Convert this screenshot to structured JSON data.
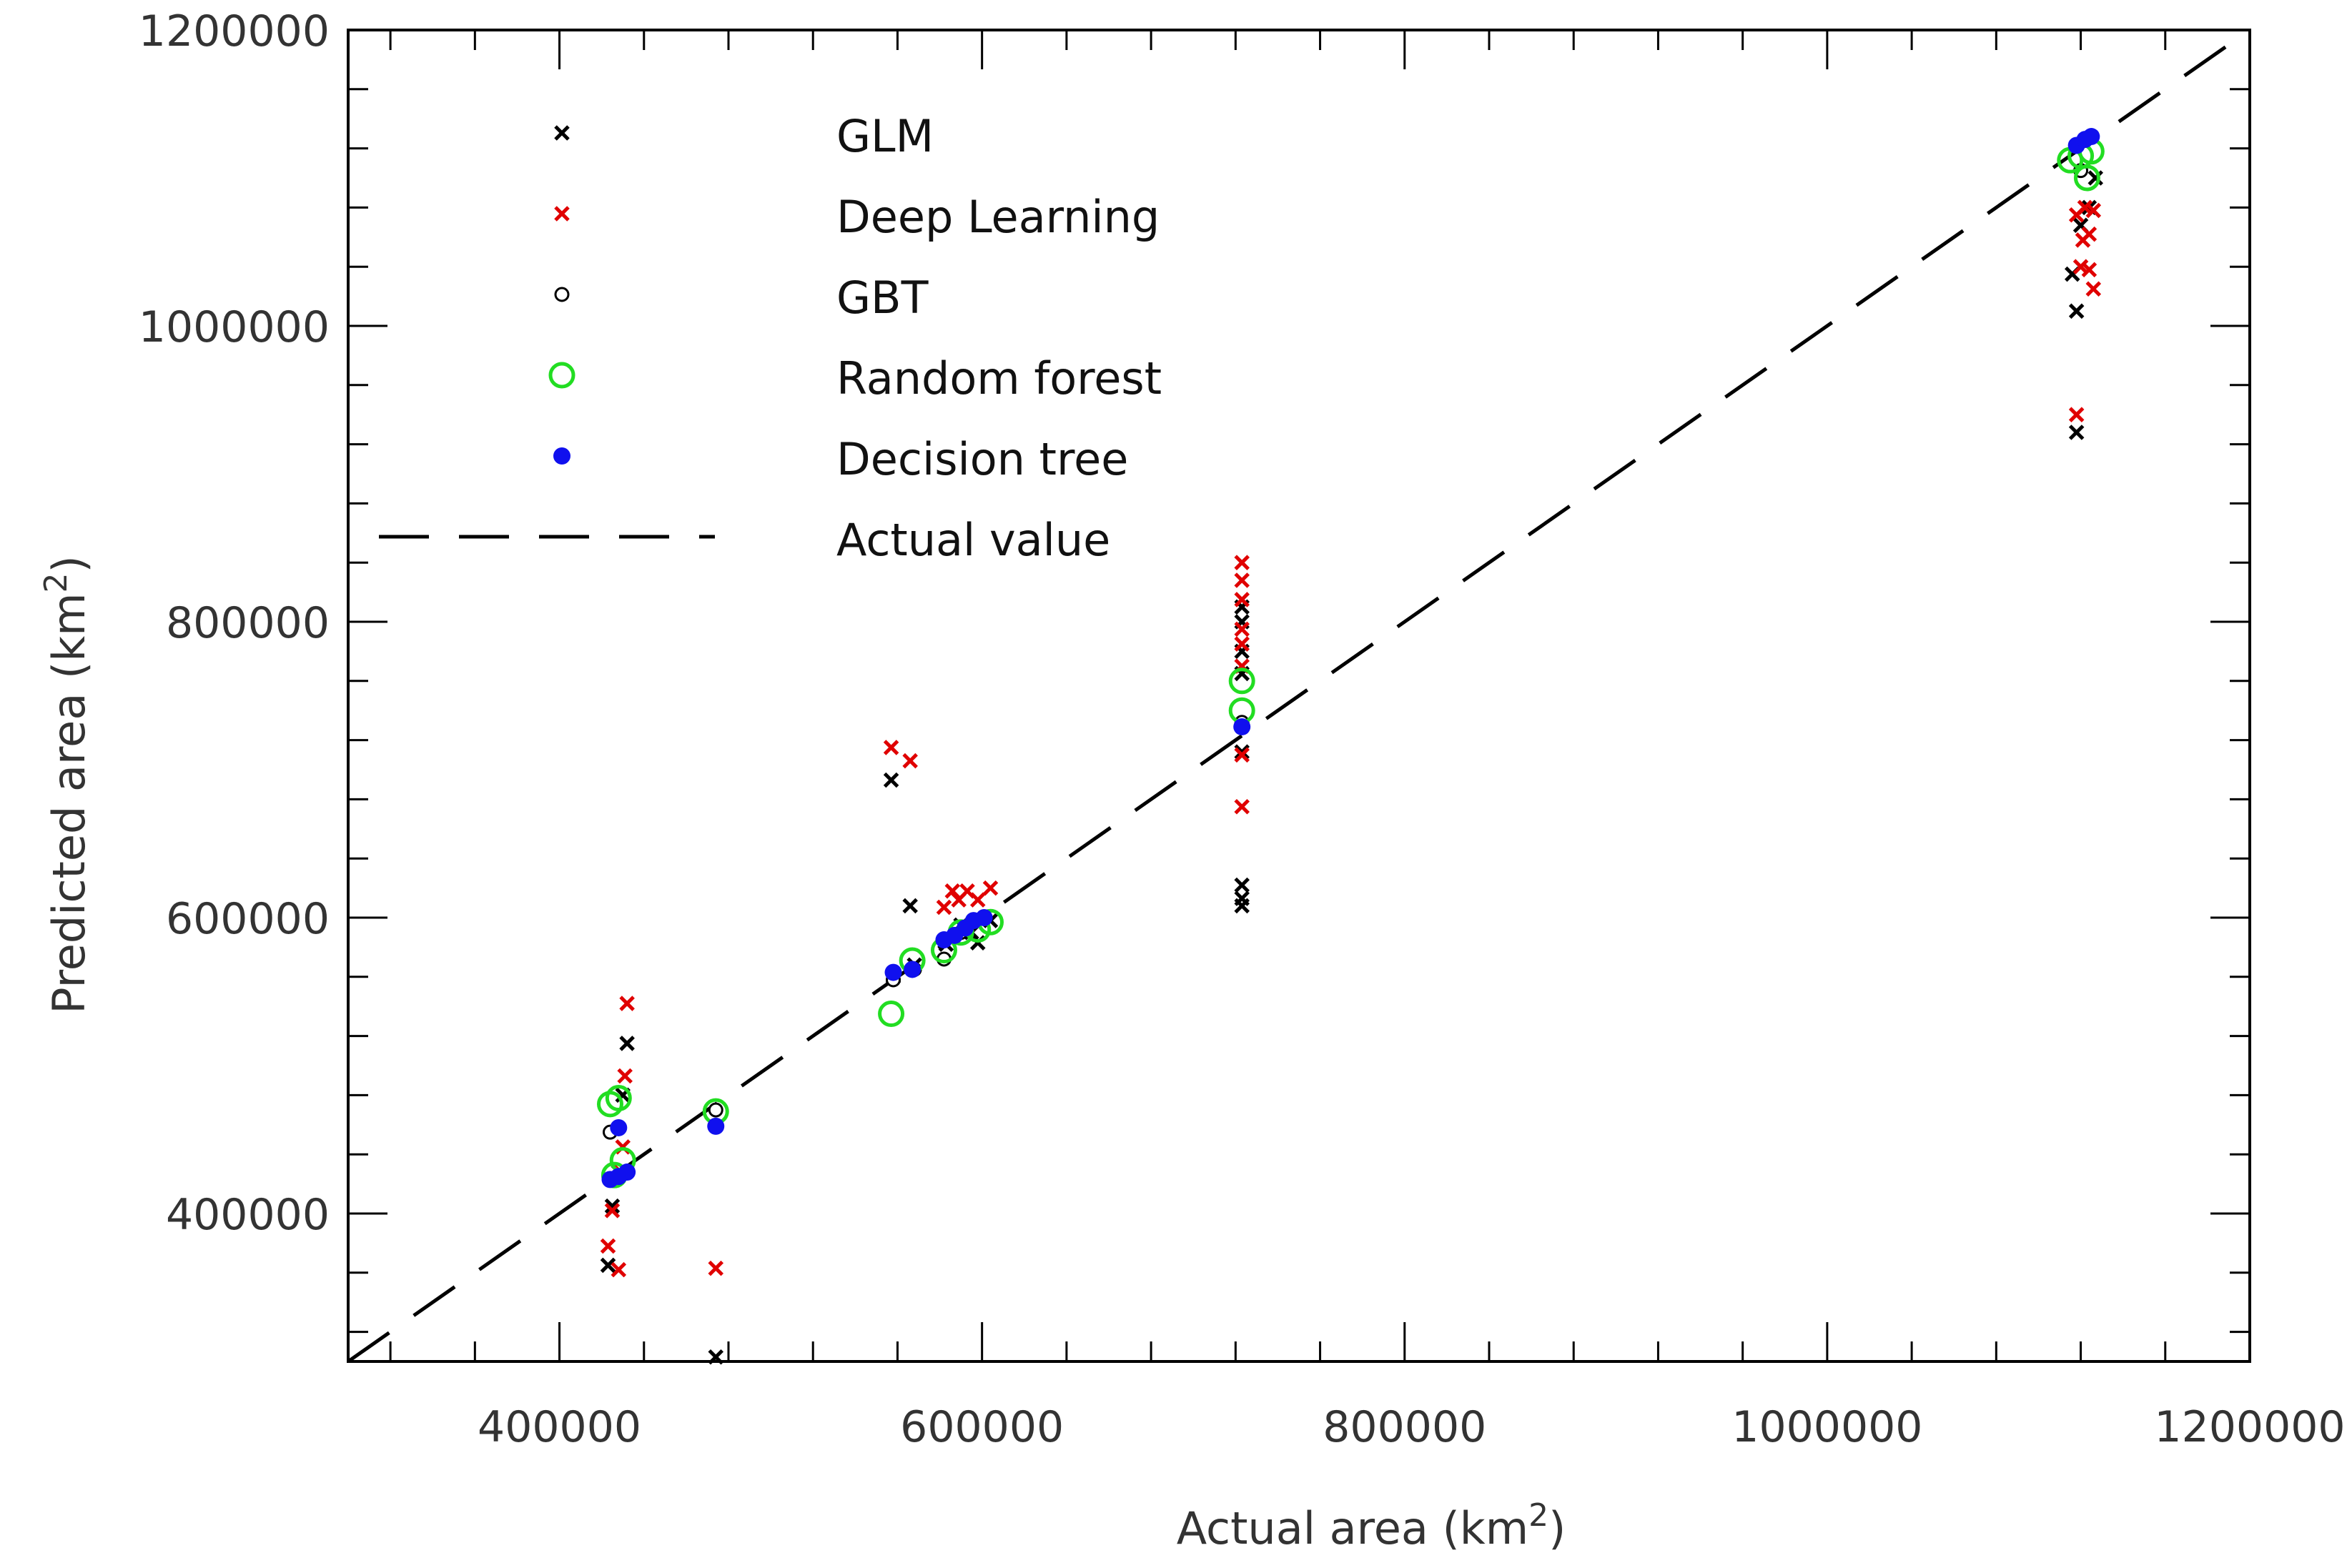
{
  "chart_data": {
    "type": "scatter",
    "title": "",
    "xlabel": {
      "prefix": "Actual area (km",
      "sup": "2",
      "suffix": ")"
    },
    "ylabel": {
      "prefix": "Predicted area (km",
      "sup": "2",
      "suffix": ")"
    },
    "xlim": [
      300000,
      1200000
    ],
    "ylim": [
      300000,
      1200000
    ],
    "x_major_ticks": [
      400000,
      600000,
      800000,
      1000000,
      1200000
    ],
    "x_tick_labels": [
      "400000",
      "600000",
      "800000",
      "1000000",
      "1200000"
    ],
    "y_major_ticks": [
      400000,
      600000,
      800000,
      1000000,
      1200000
    ],
    "y_tick_labels": [
      "400000",
      "600000",
      "800000",
      "1000000",
      "1200000"
    ],
    "minor_tick_step": 40000,
    "grid": false,
    "legend_position": "top-left",
    "reference_line": {
      "name": "Actual value",
      "points": [
        [
          300000,
          300000
        ],
        [
          1200000,
          1200000
        ]
      ],
      "color": "#000000",
      "style": "dashed"
    },
    "series": [
      {
        "name": "GLM",
        "marker": "x",
        "color": "#000000",
        "points": [
          [
            423000,
            365000
          ],
          [
            425000,
            405000
          ],
          [
            428000,
            428000
          ],
          [
            430000,
            480000
          ],
          [
            432000,
            515000
          ],
          [
            474000,
            303000
          ],
          [
            557000,
            693000
          ],
          [
            558000,
            560000
          ],
          [
            566000,
            608000
          ],
          [
            568000,
            568000
          ],
          [
            583000,
            582000
          ],
          [
            590000,
            595000
          ],
          [
            595000,
            590000
          ],
          [
            598000,
            583000
          ],
          [
            604000,
            598000
          ],
          [
            723000,
            608000
          ],
          [
            723000,
            613000
          ],
          [
            723000,
            622000
          ],
          [
            723000,
            712000
          ],
          [
            723000,
            765000
          ],
          [
            723000,
            780000
          ],
          [
            723000,
            800000
          ],
          [
            723000,
            810000
          ],
          [
            1118000,
            928000
          ],
          [
            1118000,
            1010000
          ],
          [
            1116000,
            1035000
          ],
          [
            1120000,
            1068000
          ],
          [
            1124000,
            1080000
          ],
          [
            1127000,
            1100000
          ]
        ]
      },
      {
        "name": "Deep Learning",
        "marker": "x",
        "color": "#e00000",
        "points": [
          [
            423000,
            378000
          ],
          [
            425000,
            402000
          ],
          [
            428000,
            362000
          ],
          [
            429000,
            428000
          ],
          [
            430000,
            445000
          ],
          [
            431000,
            493000
          ],
          [
            432000,
            542000
          ],
          [
            474000,
            363000
          ],
          [
            557000,
            715000
          ],
          [
            566000,
            706000
          ],
          [
            582000,
            607000
          ],
          [
            586000,
            618000
          ],
          [
            589000,
            612000
          ],
          [
            593000,
            618000
          ],
          [
            598000,
            612000
          ],
          [
            604000,
            620000
          ],
          [
            723000,
            675000
          ],
          [
            723000,
            710000
          ],
          [
            723000,
            770000
          ],
          [
            723000,
            785000
          ],
          [
            723000,
            795000
          ],
          [
            723000,
            815000
          ],
          [
            723000,
            828000
          ],
          [
            723000,
            840000
          ],
          [
            1118000,
            940000
          ],
          [
            1120000,
            1040000
          ],
          [
            1124000,
            1038000
          ],
          [
            1126000,
            1025000
          ],
          [
            1121000,
            1058000
          ],
          [
            1124000,
            1062000
          ],
          [
            1118000,
            1075000
          ],
          [
            1122000,
            1080000
          ],
          [
            1126000,
            1078000
          ]
        ]
      },
      {
        "name": "GBT",
        "marker": "circle",
        "color": "#000000",
        "points": [
          [
            424000,
            455000
          ],
          [
            428000,
            425000
          ],
          [
            474000,
            470000
          ],
          [
            558000,
            558000
          ],
          [
            568000,
            565000
          ],
          [
            582000,
            572000
          ],
          [
            590000,
            590000
          ],
          [
            723000,
            732000
          ],
          [
            1120000,
            1105000
          ]
        ]
      },
      {
        "name": "Random forest",
        "marker": "ring",
        "color": "#22dd22",
        "points": [
          [
            424000,
            474000
          ],
          [
            428000,
            478000
          ],
          [
            426000,
            426000
          ],
          [
            430000,
            436000
          ],
          [
            474000,
            469000
          ],
          [
            557000,
            535000
          ],
          [
            567000,
            571000
          ],
          [
            582000,
            578000
          ],
          [
            590000,
            590000
          ],
          [
            598000,
            592000
          ],
          [
            604000,
            597000
          ],
          [
            723000,
            740000
          ],
          [
            723000,
            760000
          ],
          [
            1115000,
            1112000
          ],
          [
            1120000,
            1115000
          ],
          [
            1123000,
            1100000
          ],
          [
            1125000,
            1118000
          ]
        ]
      },
      {
        "name": "Decision tree",
        "marker": "dot",
        "color": "#1010ee",
        "points": [
          [
            424000,
            423000
          ],
          [
            428000,
            425000
          ],
          [
            432000,
            428000
          ],
          [
            428000,
            458000
          ],
          [
            474000,
            459000
          ],
          [
            558000,
            563000
          ],
          [
            567000,
            565000
          ],
          [
            582000,
            585000
          ],
          [
            587000,
            588000
          ],
          [
            592000,
            593000
          ],
          [
            596000,
            598000
          ],
          [
            601000,
            600000
          ],
          [
            723000,
            729000
          ],
          [
            1118000,
            1122000
          ],
          [
            1122000,
            1126000
          ],
          [
            1125000,
            1128000
          ]
        ]
      }
    ]
  }
}
